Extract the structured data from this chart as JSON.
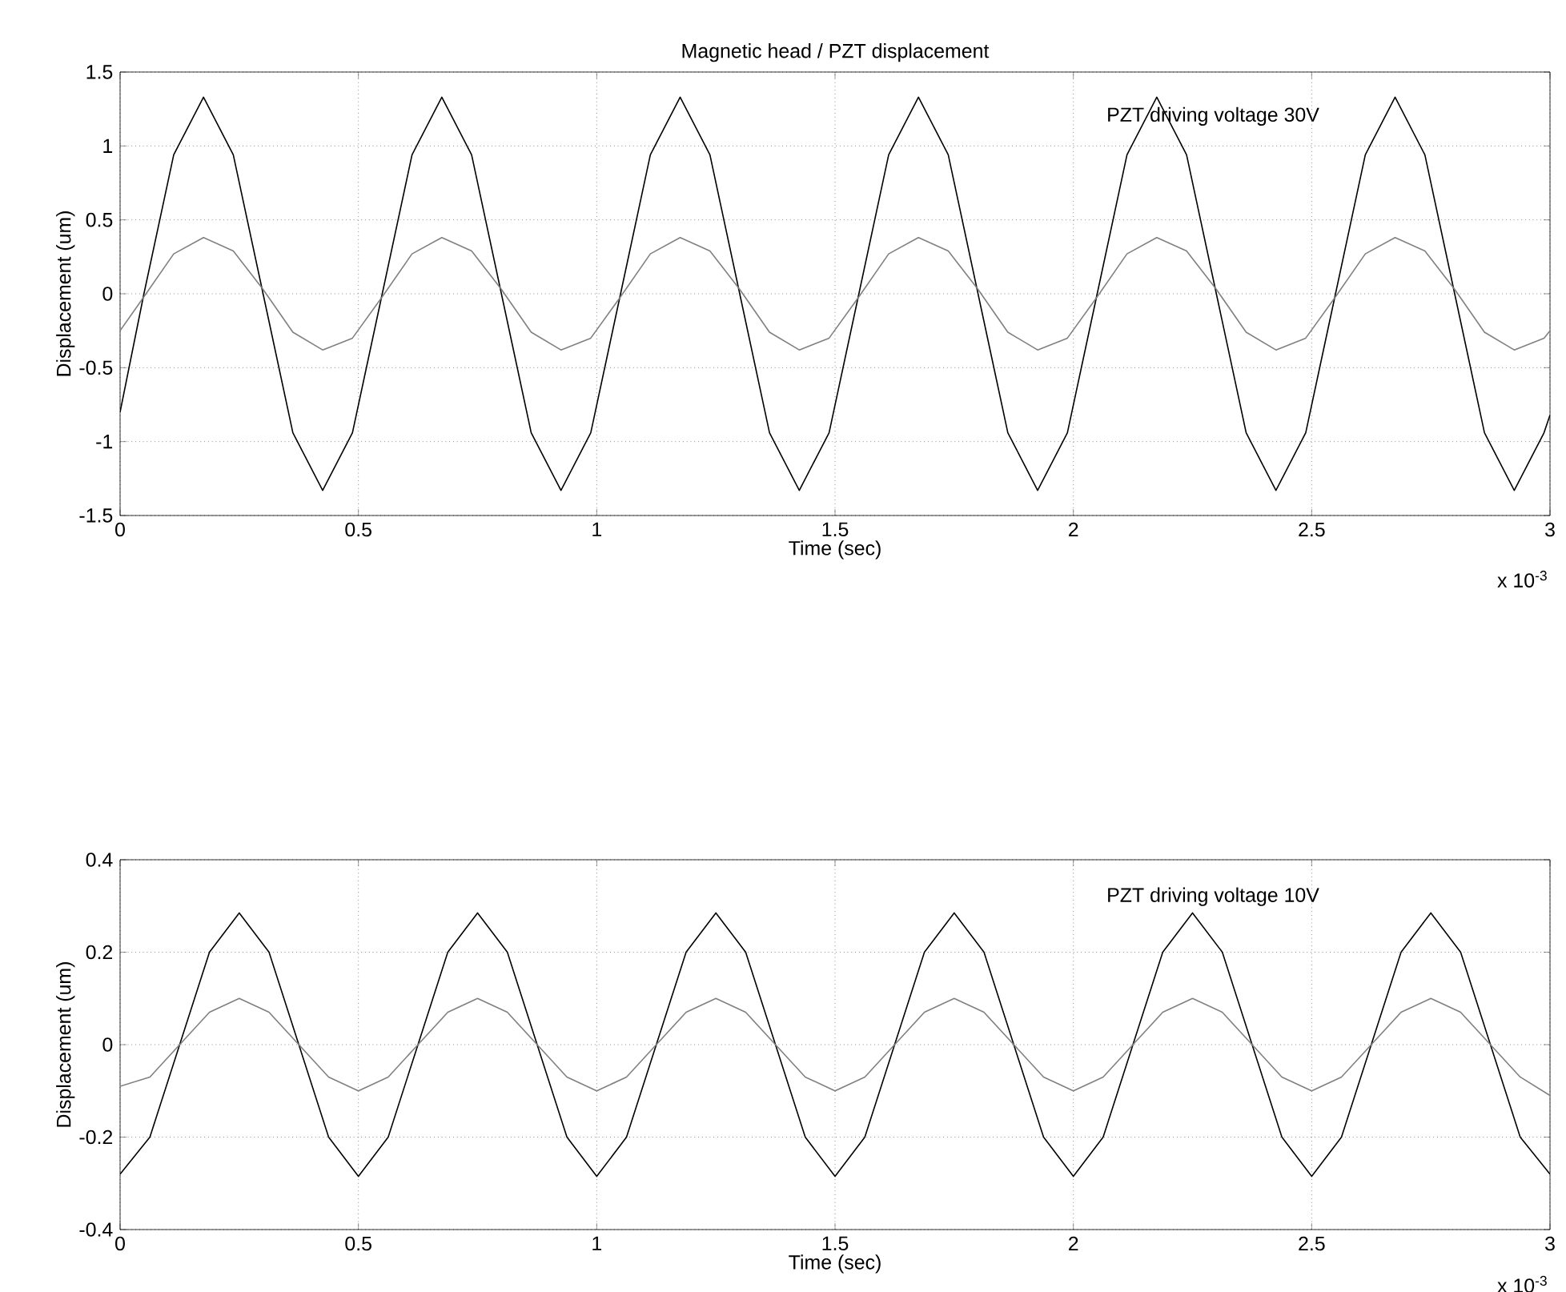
{
  "chart_data": [
    {
      "type": "line",
      "title": "Magnetic head / PZT displacement",
      "xlabel": "Time (sec)",
      "ylabel": "Displacement (um)",
      "annotations": [
        "PZT driving voltage 30V",
        "x 10$^{-3}$"
      ],
      "xlim": [
        0,
        3
      ],
      "ylim": [
        -1.5,
        1.5
      ],
      "xticks": [
        0,
        0.5,
        1,
        1.5,
        2,
        2.5,
        3
      ],
      "yticks": [
        -1.5,
        -1,
        -0.5,
        0,
        0.5,
        1,
        1.5
      ],
      "grid": true,
      "marker": "none",
      "line_style": "solid",
      "series": [
        {
          "color": "#000000",
          "x": [
            0,
            0.05,
            0.1125,
            0.175,
            0.2375,
            0.3,
            0.3625,
            0.425,
            0.4875,
            0.55,
            0.6125,
            0.675,
            0.7375,
            0.8,
            0.8625,
            0.925,
            0.9875,
            1.05,
            1.1125,
            1.175,
            1.2375,
            1.3,
            1.3625,
            1.425,
            1.4875,
            1.55,
            1.6125,
            1.675,
            1.7375,
            1.8,
            1.8625,
            1.925,
            1.9875,
            2.05,
            2.1125,
            2.175,
            2.2375,
            2.3,
            2.3625,
            2.425,
            2.4875,
            2.55,
            2.6125,
            2.675,
            2.7375,
            2.8,
            2.8625,
            2.925,
            2.9875,
            3
          ],
          "values": [
            -0.8,
            0,
            0.94,
            1.33,
            0.94,
            0,
            -0.94,
            -1.33,
            -0.94,
            0,
            0.94,
            1.33,
            0.94,
            0,
            -0.94,
            -1.33,
            -0.94,
            0,
            0.94,
            1.33,
            0.94,
            0,
            -0.94,
            -1.33,
            -0.94,
            0,
            0.94,
            1.33,
            0.94,
            0,
            -0.94,
            -1.33,
            -0.94,
            0,
            0.94,
            1.33,
            0.94,
            0,
            -0.94,
            -1.33,
            -0.94,
            0,
            0.94,
            1.33,
            0.94,
            0,
            -0.94,
            -1.33,
            -0.94,
            -0.82
          ]
        },
        {
          "color": "#808080",
          "x": [
            0,
            0.05,
            0.1125,
            0.175,
            0.2375,
            0.3,
            0.3625,
            0.425,
            0.4875,
            0.55,
            0.6125,
            0.675,
            0.7375,
            0.8,
            0.8625,
            0.925,
            0.9875,
            1.05,
            1.1125,
            1.175,
            1.2375,
            1.3,
            1.3625,
            1.425,
            1.4875,
            1.55,
            1.6125,
            1.675,
            1.7375,
            1.8,
            1.8625,
            1.925,
            1.9875,
            2.05,
            2.1125,
            2.175,
            2.2375,
            2.3,
            2.3625,
            2.425,
            2.4875,
            2.55,
            2.6125,
            2.675,
            2.7375,
            2.8,
            2.8625,
            2.925,
            2.9875,
            3
          ],
          "values": [
            -0.25,
            -0.02,
            0.27,
            0.38,
            0.29,
            0.03,
            -0.26,
            -0.38,
            -0.3,
            -0.02,
            0.27,
            0.38,
            0.29,
            0.03,
            -0.26,
            -0.38,
            -0.3,
            -0.02,
            0.27,
            0.38,
            0.29,
            0.03,
            -0.26,
            -0.38,
            -0.3,
            -0.02,
            0.27,
            0.38,
            0.29,
            0.03,
            -0.26,
            -0.38,
            -0.3,
            -0.02,
            0.27,
            0.38,
            0.29,
            0.03,
            -0.26,
            -0.38,
            -0.3,
            -0.02,
            0.27,
            0.38,
            0.29,
            0.03,
            -0.26,
            -0.38,
            -0.3,
            -0.25
          ]
        }
      ]
    },
    {
      "type": "line",
      "xlabel": "Time (sec)",
      "ylabel": "Displacement (um)",
      "annotations": [
        "PZT driving voltage 10V",
        "x 10$^{-3}$"
      ],
      "xlim": [
        0,
        3
      ],
      "ylim": [
        -0.4,
        0.4
      ],
      "xticks": [
        0,
        0.5,
        1,
        1.5,
        2,
        2.5,
        3
      ],
      "yticks": [
        -0.4,
        -0.2,
        0,
        0.2,
        0.4
      ],
      "grid": true,
      "marker": "none",
      "line_style": "solid",
      "x": [
        0,
        0.0625,
        0.125,
        0.1875,
        0.25,
        0.3125,
        0.375,
        0.4375,
        0.5,
        0.5625,
        0.625,
        0.6875,
        0.75,
        0.8125,
        0.875,
        0.9375,
        1,
        1.0625,
        1.125,
        1.1875,
        1.25,
        1.3125,
        1.375,
        1.4375,
        1.5,
        1.5625,
        1.625,
        1.6875,
        1.75,
        1.8125,
        1.875,
        1.9375,
        2,
        2.0625,
        2.125,
        2.1875,
        2.25,
        2.3125,
        2.375,
        2.4375,
        2.5,
        2.5625,
        2.625,
        2.6875,
        2.75,
        2.8125,
        2.875,
        2.9375,
        3
      ],
      "series": [
        {
          "color": "#000000",
          "values": [
            -0.28,
            -0.2,
            0,
            0.2,
            0.285,
            0.2,
            0,
            -0.2,
            -0.285,
            -0.2,
            0,
            0.2,
            0.285,
            0.2,
            0,
            -0.2,
            -0.285,
            -0.2,
            0,
            0.2,
            0.285,
            0.2,
            0,
            -0.2,
            -0.285,
            -0.2,
            0,
            0.2,
            0.285,
            0.2,
            0,
            -0.2,
            -0.285,
            -0.2,
            0,
            0.2,
            0.285,
            0.2,
            0,
            -0.2,
            -0.285,
            -0.2,
            0,
            0.2,
            0.285,
            0.2,
            0,
            -0.2,
            -0.28
          ]
        },
        {
          "color": "#808080",
          "values": [
            -0.09,
            -0.07,
            0,
            0.07,
            0.1,
            0.07,
            0,
            -0.07,
            -0.1,
            -0.07,
            0,
            0.07,
            0.1,
            0.07,
            0,
            -0.07,
            -0.1,
            -0.07,
            0,
            0.07,
            0.1,
            0.07,
            0,
            -0.07,
            -0.1,
            -0.07,
            0,
            0.07,
            0.1,
            0.07,
            0,
            -0.07,
            -0.1,
            -0.07,
            0,
            0.07,
            0.1,
            0.07,
            0,
            -0.07,
            -0.1,
            -0.07,
            0,
            0.07,
            0.1,
            0.07,
            0,
            -0.07,
            -0.11
          ]
        }
      ]
    }
  ]
}
